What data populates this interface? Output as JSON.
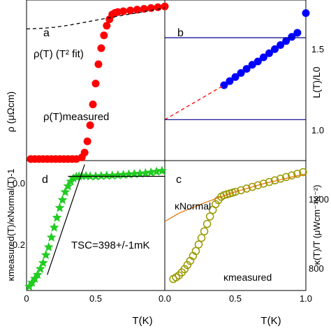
{
  "figure": {
    "x_axis_label": "T(K)",
    "x_ticks": [
      "0",
      "0.5",
      "1.0"
    ],
    "x_ticks_right": [
      "0.0",
      "0.5",
      "1.0"
    ]
  },
  "chart_data": [
    {
      "panel": "a",
      "type": "scatter",
      "ylabel": "ρ (μΩcm)",
      "xlim": [
        0,
        1.0
      ],
      "ylim": [
        0,
        1.0
      ],
      "grid": false,
      "annotations": [
        "ρ(T) (T² fit)",
        "ρ(T)measured"
      ],
      "series": [
        {
          "name": "ρ(T)measured",
          "color": "#ff0000",
          "marker": "circle",
          "x": [
            0.03,
            0.06,
            0.09,
            0.12,
            0.15,
            0.18,
            0.21,
            0.24,
            0.27,
            0.3,
            0.33,
            0.36,
            0.4,
            0.42,
            0.44,
            0.46,
            0.48,
            0.5,
            0.52,
            0.54,
            0.56,
            0.58,
            0.6,
            0.62,
            0.64,
            0.66,
            0.7,
            0.75,
            0.8,
            0.85,
            0.9,
            0.95,
            1.0
          ],
          "y": [
            0.01,
            0.01,
            0.01,
            0.01,
            0.01,
            0.01,
            0.01,
            0.01,
            0.01,
            0.01,
            0.01,
            0.01,
            0.02,
            0.05,
            0.12,
            0.22,
            0.35,
            0.48,
            0.6,
            0.7,
            0.78,
            0.84,
            0.88,
            0.91,
            0.92,
            0.925,
            0.93,
            0.935,
            0.94,
            0.945,
            0.95,
            0.955,
            0.96
          ]
        },
        {
          "name": "ρ(T) (T² fit)",
          "color": "#000000",
          "style": "dashed",
          "x": [
            0.0,
            0.1,
            0.2,
            0.3,
            0.4,
            0.5,
            0.6,
            0.7,
            0.8,
            0.9,
            1.0
          ],
          "y": [
            0.82,
            0.823,
            0.83,
            0.842,
            0.858,
            0.874,
            0.89,
            0.905,
            0.92,
            0.935,
            0.95
          ]
        }
      ]
    },
    {
      "panel": "b",
      "type": "scatter",
      "ylabel": "L(T)/L0",
      "y_ticks": [
        "1.0",
        "1.5"
      ],
      "xlim": [
        0,
        1.0
      ],
      "ylim": [
        0.75,
        1.73
      ],
      "grid": false,
      "series": [
        {
          "name": "L(T)/L0",
          "color": "#0000ff",
          "marker": "circle",
          "x": [
            0.42,
            0.46,
            0.5,
            0.54,
            0.58,
            0.62,
            0.66,
            0.7,
            0.74,
            0.78,
            0.82,
            0.86,
            0.9,
            0.94,
            1.0
          ],
          "y": [
            1.21,
            1.235,
            1.26,
            1.285,
            1.31,
            1.335,
            1.355,
            1.38,
            1.405,
            1.43,
            1.455,
            1.48,
            1.505,
            1.53,
            1.65
          ]
        },
        {
          "name": "extrapolation",
          "color": "#ff0000",
          "style": "dashed",
          "x": [
            0.0,
            0.42
          ],
          "y": [
            1.0,
            1.21
          ]
        },
        {
          "name": "reference-1.0",
          "color": "#00008b",
          "x": [
            0,
            1.0
          ],
          "y": [
            1.0,
            1.0
          ]
        },
        {
          "name": "reference-1.5",
          "color": "#00008b",
          "x": [
            0,
            1.0
          ],
          "y": [
            1.5,
            1.5
          ]
        }
      ]
    },
    {
      "panel": "d",
      "type": "scatter",
      "ylabel": "κmeasured(T)/κNormal(T)-1",
      "y_ticks": [
        "0.0",
        "-0.2"
      ],
      "xlim": [
        0,
        1.0
      ],
      "ylim": [
        -0.29,
        0.04
      ],
      "grid": false,
      "annotations": [
        "TSC=398+/-1mK"
      ],
      "series": [
        {
          "name": "κmeasured/κNormal-1",
          "color": "#22cc22",
          "marker": "star",
          "x": [
            0.02,
            0.04,
            0.06,
            0.08,
            0.1,
            0.12,
            0.14,
            0.16,
            0.18,
            0.2,
            0.22,
            0.24,
            0.26,
            0.28,
            0.3,
            0.32,
            0.34,
            0.36,
            0.38,
            0.4,
            0.43,
            0.46,
            0.5,
            0.54,
            0.58,
            0.62,
            0.66,
            0.7,
            0.74,
            0.78,
            0.82,
            0.86,
            0.9,
            0.94,
            0.98
          ],
          "y": [
            -0.28,
            -0.27,
            -0.26,
            -0.25,
            -0.235,
            -0.22,
            -0.2,
            -0.18,
            -0.155,
            -0.13,
            -0.105,
            -0.08,
            -0.06,
            -0.04,
            -0.025,
            -0.013,
            -0.005,
            -0.001,
            0.0,
            0.001,
            0.001,
            0.0,
            0.0,
            0.001,
            0.002,
            0.002,
            0.003,
            0.004,
            0.005,
            0.006,
            0.007,
            0.008,
            0.01,
            0.012,
            0.014
          ]
        },
        {
          "name": "fit-line",
          "color": "#000000",
          "x": [
            0.15,
            0.42
          ],
          "y": [
            -0.25,
            0.03
          ]
        },
        {
          "name": "zero-line",
          "color": "#000000",
          "x": [
            0.3,
            1.0
          ],
          "y": [
            0.0,
            0.0
          ]
        }
      ]
    },
    {
      "panel": "c",
      "type": "scatter",
      "ylabel": "κ(T)/T (μWcm⁻¹K⁻²)",
      "y_ticks": [
        "800",
        "1200"
      ],
      "xlim": [
        0,
        1.0
      ],
      "ylim": [
        580,
        1370
      ],
      "grid": false,
      "annotations": [
        "κNormal",
        "κmeasured"
      ],
      "series": [
        {
          "name": "κmeasured",
          "color": "#999900",
          "marker": "open-circle",
          "x": [
            0.06,
            0.08,
            0.1,
            0.12,
            0.14,
            0.16,
            0.18,
            0.2,
            0.22,
            0.24,
            0.26,
            0.28,
            0.3,
            0.32,
            0.34,
            0.36,
            0.38,
            0.4,
            0.42,
            0.44,
            0.46,
            0.48,
            0.5,
            0.54,
            0.58,
            0.62,
            0.66,
            0.7,
            0.74,
            0.78,
            0.82,
            0.86,
            0.9,
            0.94,
            0.98
          ],
          "y": [
            650,
            660,
            672,
            690,
            710,
            735,
            760,
            790,
            820,
            860,
            900,
            940,
            985,
            1030,
            1070,
            1105,
            1130,
            1150,
            1160,
            1165,
            1170,
            1175,
            1180,
            1190,
            1200,
            1210,
            1220,
            1230,
            1240,
            1250,
            1260,
            1270,
            1280,
            1290,
            1300
          ]
        },
        {
          "name": "κNormal",
          "color": "#e07000",
          "style": "line",
          "x": [
            0.0,
            0.1,
            0.2,
            0.3,
            0.4,
            0.5,
            0.6,
            0.7,
            0.8,
            0.9,
            1.0
          ],
          "y": [
            1000,
            1050,
            1085,
            1120,
            1150,
            1180,
            1205,
            1230,
            1250,
            1270,
            1290
          ]
        }
      ]
    }
  ]
}
